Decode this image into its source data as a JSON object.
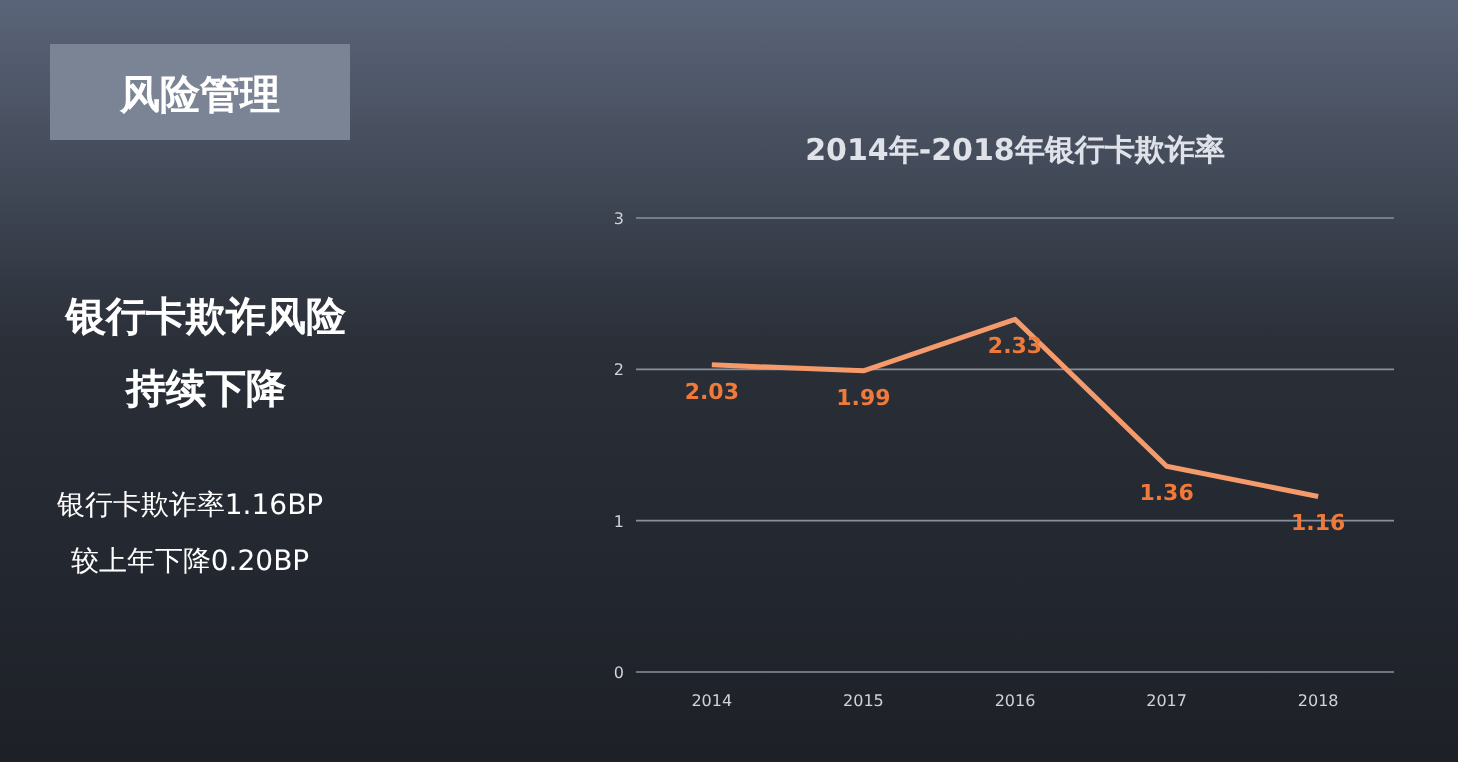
{
  "chart_data": {
    "type": "line",
    "title": "2014年-2018年银行卡欺诈率",
    "categories": [
      "2014",
      "2015",
      "2016",
      "2017",
      "2018"
    ],
    "values": [
      2.03,
      1.99,
      2.33,
      1.36,
      1.16
    ],
    "color": "#f59a6a",
    "ylim": [
      0,
      3
    ],
    "yticks": [
      0,
      1,
      2,
      3
    ],
    "grid": "y",
    "data_labels": true,
    "marker": "none",
    "line_style": "solid",
    "annotations": [
      "风险管理",
      "银行卡欺诈风险",
      "持续下降",
      "银行卡欺诈率1.16BP",
      "较上年下降0.20BP"
    ]
  }
}
